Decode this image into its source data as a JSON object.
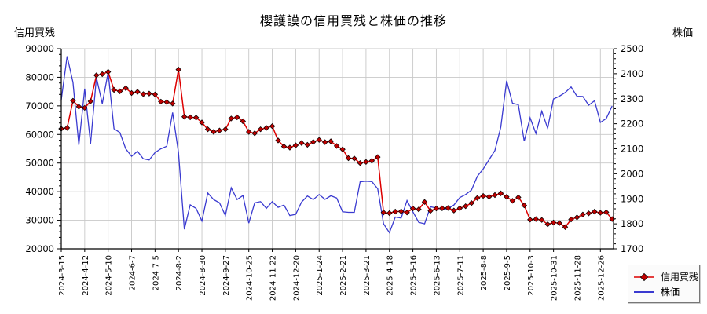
{
  "chart_data": {
    "type": "line",
    "title": "櫻護謨の信用買残と株価の推移",
    "x_tick_labels": [
      "2024-3-15",
      "2024-4-12",
      "2024-5-10",
      "2024-6-7",
      "2024-7-5",
      "2024-8-2",
      "2024-8-30",
      "2024-9-27",
      "2024-10-25",
      "2024-11-22",
      "2024-12-20",
      "2025-1-24",
      "2025-2-21",
      "2025-3-21",
      "2025-4-18",
      "2025-5-16",
      "2025-6-13",
      "2025-7-11",
      "2025-8-8",
      "2025-9-5",
      "2025-10-3",
      "2025-10-31",
      "2025-11-28",
      "2025-12-26"
    ],
    "x_label_every": 4,
    "left_axis": {
      "title": "信用買残",
      "min": 20000,
      "max": 90000,
      "tick_step": 10000,
      "minor_step": 2000,
      "tick_labels": [
        "90000",
        "80000",
        "70000",
        "60000",
        "50000",
        "40000",
        "30000",
        "20000"
      ]
    },
    "right_axis": {
      "title": "株価",
      "min": 1700,
      "max": 2500,
      "tick_step": 100,
      "minor_step": 20,
      "tick_labels": [
        "2500",
        "2400",
        "2300",
        "2200",
        "2100",
        "2000",
        "1900",
        "1800",
        "1700"
      ]
    },
    "grid": true,
    "legend": {
      "position": "bottom-right",
      "entries": [
        {
          "label": "信用買残",
          "color": "#dd0000",
          "marker": "diamond"
        },
        {
          "label": "株価",
          "color": "#3a3ad0",
          "marker": "line"
        }
      ]
    },
    "colors": {
      "grid": "#c8c8c8",
      "axis": "#000000",
      "background": "#ffffff",
      "margin_line": "#dd0000",
      "margin_marker": "#c00000",
      "stock_line": "#3a3ad0"
    },
    "series": [
      {
        "name": "信用買残",
        "axis": "left",
        "color": "#dd0000",
        "marker": "diamond",
        "values": [
          62000,
          62300,
          71800,
          69700,
          69300,
          71600,
          80700,
          81100,
          81900,
          75600,
          75100,
          76200,
          74500,
          74900,
          74100,
          74300,
          74000,
          71500,
          71300,
          70800,
          82700,
          66200,
          66000,
          65900,
          64200,
          61800,
          60900,
          61400,
          61800,
          65600,
          66000,
          64600,
          60900,
          60400,
          61800,
          62300,
          62900,
          57900,
          55800,
          55400,
          56200,
          57000,
          56400,
          57400,
          58100,
          57300,
          57600,
          56000,
          54800,
          51700,
          51600,
          50000,
          50400,
          50800,
          52100,
          32700,
          32500,
          33000,
          33100,
          32700,
          34100,
          33800,
          36400,
          33300,
          34100,
          34200,
          34300,
          33400,
          34200,
          34900,
          36000,
          37800,
          38500,
          38200,
          38800,
          39400,
          38200,
          36800,
          38000,
          35200,
          30200,
          30400,
          30100,
          28600,
          29200,
          29000,
          27600,
          30300,
          31000,
          32000,
          32400,
          33000,
          32600,
          32800,
          30400
        ]
      },
      {
        "name": "株価",
        "axis": "right",
        "color": "#3a3ad0",
        "marker": "none",
        "values": [
          2295,
          2470,
          2365,
          2115,
          2340,
          2120,
          2385,
          2280,
          2405,
          2180,
          2165,
          2100,
          2070,
          2090,
          2060,
          2055,
          2085,
          2100,
          2110,
          2245,
          2085,
          1778,
          1876,
          1862,
          1811,
          1923,
          1897,
          1884,
          1833,
          1944,
          1897,
          1913,
          1803,
          1884,
          1889,
          1862,
          1889,
          1866,
          1875,
          1833,
          1838,
          1887,
          1911,
          1897,
          1917,
          1898,
          1912,
          1903,
          1848,
          1846,
          1846,
          1968,
          1970,
          1969,
          1940,
          1800,
          1765,
          1827,
          1823,
          1893,
          1848,
          1806,
          1800,
          1868,
          1863,
          1858,
          1861,
          1875,
          1905,
          1917,
          1935,
          1990,
          2019,
          2056,
          2093,
          2186,
          2372,
          2282,
          2276,
          2130,
          2224,
          2161,
          2250,
          2182,
          2299,
          2310,
          2325,
          2347,
          2310,
          2309,
          2274,
          2292,
          2205,
          2221,
          2271
        ]
      }
    ]
  }
}
